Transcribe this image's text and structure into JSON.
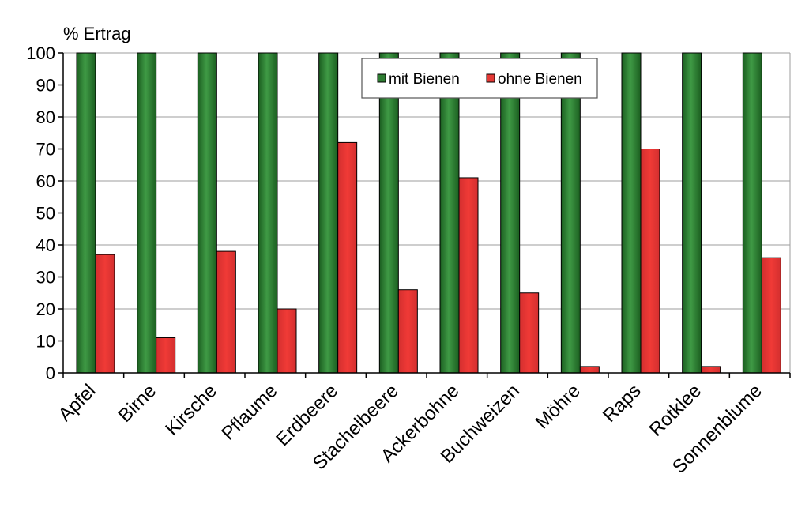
{
  "chart_data": {
    "type": "bar",
    "title": "",
    "xlabel": "",
    "ylabel": "% Ertrag",
    "ylim": [
      0,
      100
    ],
    "yticks": [
      0,
      10,
      20,
      30,
      40,
      50,
      60,
      70,
      80,
      90,
      100
    ],
    "grid": true,
    "legend_position": "top-center",
    "categories": [
      "Apfel",
      "Birne",
      "Kirsche",
      "Pflaume",
      "Erdbeere",
      "Stachelbeere",
      "Ackerbohne",
      "Buchweizen",
      "Möhre",
      "Raps",
      "Rotklee",
      "Sonnenblume"
    ],
    "series": [
      {
        "name": "mit Bienen",
        "color": "#2e7d32",
        "values": [
          100,
          100,
          100,
          100,
          100,
          100,
          100,
          100,
          100,
          100,
          100,
          100
        ]
      },
      {
        "name": "ohne Bienen",
        "color": "#e53935",
        "values": [
          37,
          11,
          38,
          20,
          72,
          26,
          61,
          25,
          2,
          70,
          2,
          36
        ]
      }
    ]
  }
}
